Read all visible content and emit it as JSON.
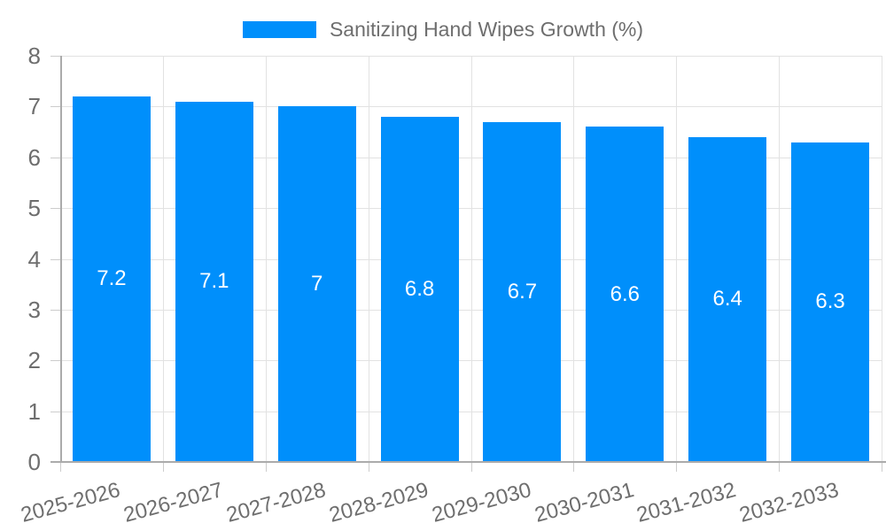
{
  "legend": {
    "label": "Sanitizing Hand Wipes Growth (%)"
  },
  "colors": {
    "bar": "#008ffb",
    "axis_text": "#6e6e6e",
    "grid": "#e2e2e2",
    "axis_line": "#ababab",
    "tick": "#cccccc",
    "value_label": "#ffffff",
    "background": "#ffffff"
  },
  "chart_data": {
    "type": "bar",
    "title": "Sanitizing Hand Wipes Growth (%)",
    "categories": [
      "2025-2026",
      "2026-2027",
      "2027-2028",
      "2028-2029",
      "2029-2030",
      "2030-2031",
      "2031-2032",
      "2032-2033"
    ],
    "values": [
      7.2,
      7.1,
      7,
      6.8,
      6.7,
      6.6,
      6.4,
      6.3
    ],
    "value_labels": [
      "7.2",
      "7.1",
      "7",
      "6.8",
      "6.7",
      "6.6",
      "6.4",
      "6.3"
    ],
    "xlabel": "",
    "ylabel": "",
    "ylim": [
      0,
      8
    ],
    "yticks": [
      0,
      1,
      2,
      3,
      4,
      5,
      6,
      7,
      8
    ],
    "grid": true,
    "legend_position": "top",
    "x_label_rotation_deg": -15,
    "bar_label_position": "middle",
    "bar_label_color": "#ffffff"
  }
}
